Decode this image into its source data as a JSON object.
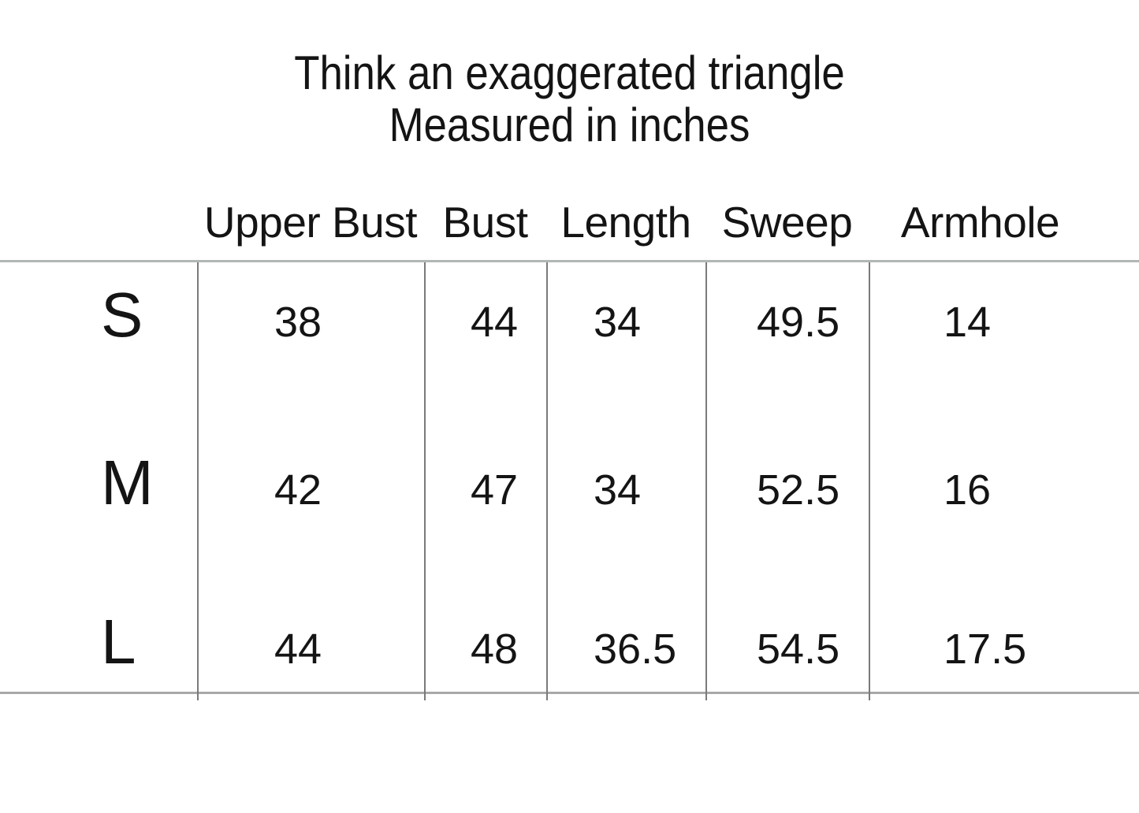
{
  "chart_data": {
    "type": "table",
    "title": "Think an exaggerated triangle",
    "subtitle": "Measured in inches",
    "unit_note": "Measured in inches",
    "columns": [
      "",
      "Upper Bust",
      "Bust",
      "Length",
      "Sweep",
      "Armhole"
    ],
    "rows": [
      [
        "S",
        38,
        44,
        34,
        49.5,
        14
      ],
      [
        "M",
        42,
        47,
        34,
        52.5,
        16
      ],
      [
        "L",
        44,
        48,
        36.5,
        54.5,
        17.5
      ]
    ],
    "layout": {
      "grid": "horizontal rules top and bottom only, thin vertical column dividers, no outer side borders"
    }
  },
  "colors": {
    "background": "#ffffff",
    "text": "#141414",
    "horizontal_rule_top": "#b2b6b6",
    "horizontal_rule_bottom": "#a8a8a8",
    "vertical_rule": "#7a7a7a"
  }
}
